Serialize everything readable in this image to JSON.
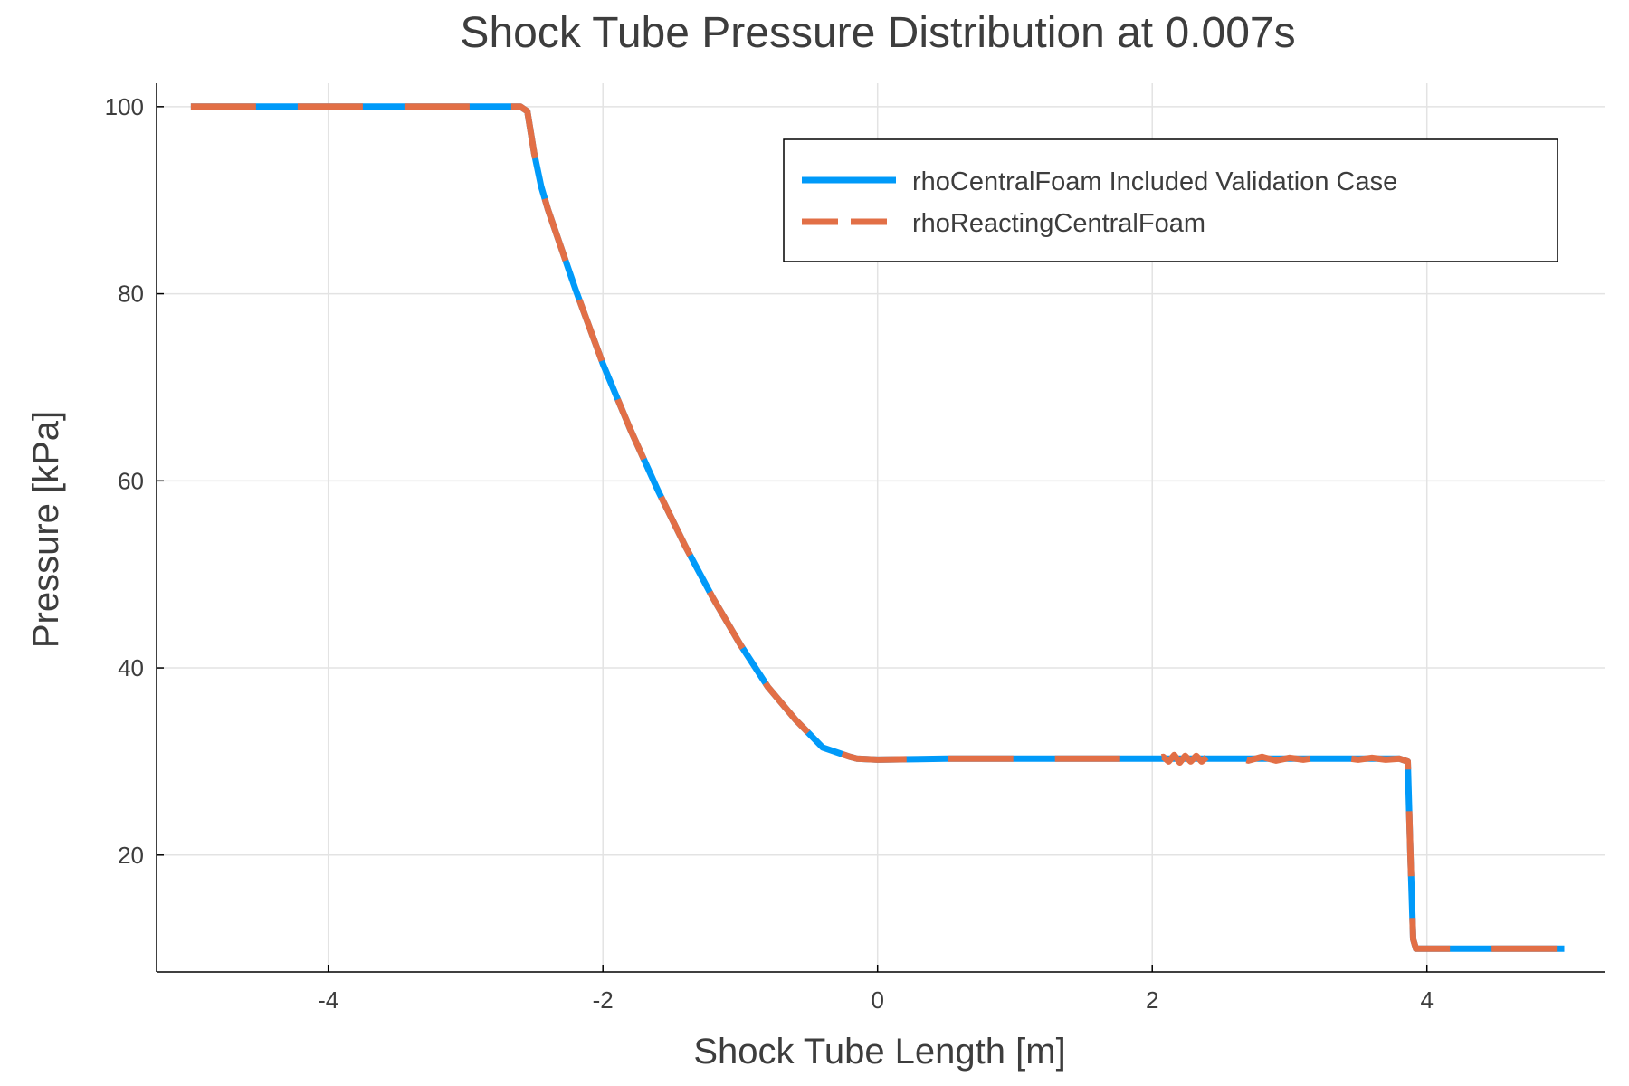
{
  "chart_data": {
    "type": "line",
    "title": "Shock Tube Pressure Distribution at 0.007s",
    "xlabel": "Shock Tube Length [m]",
    "ylabel": "Pressure [kPa]",
    "xlim": [
      -5.25,
      5.3
    ],
    "ylim": [
      7.5,
      102.5
    ],
    "xticks": [
      -4,
      -2,
      0,
      2,
      4
    ],
    "xtick_labels": [
      "-4",
      "-2",
      "0",
      "2",
      "4"
    ],
    "yticks": [
      20,
      40,
      60,
      80,
      100
    ],
    "ytick_labels": [
      "20",
      "40",
      "60",
      "80",
      "100"
    ],
    "grid": true,
    "legend_position": "top-right",
    "series": [
      {
        "name": "rhoCentralFoam Included Validation Case",
        "color": "#009af9",
        "style": "solid",
        "x": [
          -5.0,
          -2.6,
          -2.55,
          -2.5,
          -2.45,
          -2.4,
          -2.2,
          -2.0,
          -1.8,
          -1.6,
          -1.4,
          -1.2,
          -1.0,
          -0.8,
          -0.6,
          -0.4,
          -0.2,
          -0.15,
          0.0,
          0.5,
          1.0,
          1.5,
          2.0,
          2.08,
          2.2,
          2.4,
          2.6,
          2.8,
          3.0,
          3.2,
          3.4,
          3.6,
          3.8,
          3.86,
          3.88,
          3.9,
          3.92,
          4.0,
          5.0
        ],
        "y": [
          100,
          100,
          99.5,
          95,
          91.5,
          89,
          80.5,
          72.5,
          65.5,
          59,
          53,
          47.5,
          42.5,
          38,
          34.5,
          31.5,
          30.5,
          30.3,
          30.2,
          30.3,
          30.3,
          30.3,
          30.3,
          30.3,
          30.3,
          30.3,
          30.3,
          30.3,
          30.3,
          30.3,
          30.3,
          30.3,
          30.3,
          30.0,
          20,
          11,
          10.0,
          10.0,
          10.0
        ]
      },
      {
        "name": "rhoReactingCentralFoam",
        "color": "#e26f46",
        "style": "dashed",
        "x": [
          -5.0,
          -2.6,
          -2.55,
          -2.5,
          -2.45,
          -2.4,
          -2.2,
          -2.0,
          -1.8,
          -1.6,
          -1.4,
          -1.2,
          -1.0,
          -0.8,
          -0.6,
          -0.4,
          -0.2,
          -0.15,
          0.0,
          0.5,
          1.0,
          1.5,
          2.0,
          2.08,
          2.12,
          2.16,
          2.2,
          2.24,
          2.28,
          2.32,
          2.36,
          2.4,
          2.5,
          2.6,
          2.7,
          2.8,
          2.9,
          3.0,
          3.1,
          3.2,
          3.3,
          3.4,
          3.5,
          3.6,
          3.7,
          3.8,
          3.86,
          3.88,
          3.9,
          3.92,
          4.0,
          5.0
        ],
        "y": [
          100,
          100,
          99.5,
          95,
          91.5,
          89,
          80.5,
          72.5,
          65.5,
          59,
          53,
          47.5,
          42.5,
          38,
          34.5,
          31.5,
          30.5,
          30.3,
          30.2,
          30.3,
          30.3,
          30.3,
          30.3,
          30.5,
          30.0,
          30.7,
          29.9,
          30.6,
          30.0,
          30.6,
          30.0,
          30.5,
          30.1,
          30.5,
          30.1,
          30.5,
          30.1,
          30.4,
          30.2,
          30.4,
          30.2,
          30.4,
          30.2,
          30.4,
          30.2,
          30.3,
          30.0,
          20,
          11,
          10.0,
          10.0,
          10.0
        ]
      }
    ]
  }
}
